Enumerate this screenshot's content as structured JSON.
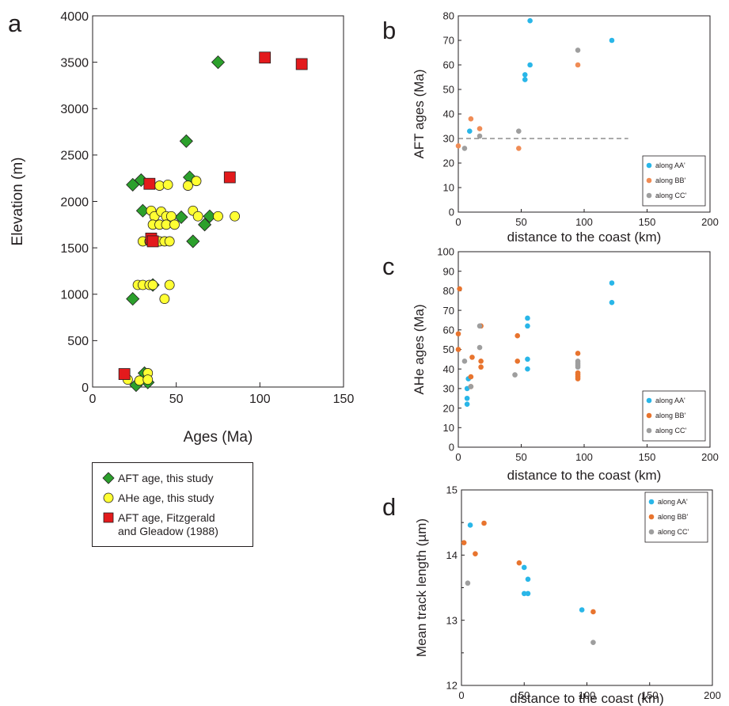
{
  "chart_data": [
    {
      "panel": "a",
      "type": "scatter",
      "xlabel": "Ages (Ma)",
      "ylabel": "Elevation (m)",
      "xlim": [
        0,
        150
      ],
      "ylim": [
        0,
        4000
      ],
      "xticks": [
        "0",
        "50",
        "100",
        "150"
      ],
      "yticks": [
        "0",
        "500",
        "1000",
        "1500",
        "2000",
        "2500",
        "3000",
        "3500",
        "4000"
      ],
      "series": [
        {
          "name": "AFT age, this study",
          "marker": "diamond",
          "color": "#2ca02c",
          "points": [
            [
              75,
              3500
            ],
            [
              56,
              2650
            ],
            [
              24,
              2180
            ],
            [
              29,
              2230
            ],
            [
              58,
              2260
            ],
            [
              30,
              1900
            ],
            [
              53,
              1830
            ],
            [
              70,
              1840
            ],
            [
              67,
              1750
            ],
            [
              60,
              1570
            ],
            [
              36,
              1100
            ],
            [
              24,
              950
            ],
            [
              31,
              150
            ],
            [
              33,
              50
            ],
            [
              26,
              20
            ]
          ]
        },
        {
          "name": "AHe age, this study",
          "marker": "circle",
          "color": "#ffff33",
          "points": [
            [
              40,
              2170
            ],
            [
              45,
              2180
            ],
            [
              57,
              2170
            ],
            [
              62,
              2220
            ],
            [
              35,
              1900
            ],
            [
              37,
              1840
            ],
            [
              41,
              1890
            ],
            [
              44,
              1840
            ],
            [
              47,
              1840
            ],
            [
              60,
              1900
            ],
            [
              63,
              1840
            ],
            [
              75,
              1840
            ],
            [
              85,
              1840
            ],
            [
              36,
              1750
            ],
            [
              40,
              1750
            ],
            [
              44,
              1750
            ],
            [
              49,
              1750
            ],
            [
              30,
              1570
            ],
            [
              34,
              1570
            ],
            [
              36,
              1570
            ],
            [
              40,
              1570
            ],
            [
              43,
              1570
            ],
            [
              46,
              1570
            ],
            [
              27,
              1100
            ],
            [
              30,
              1100
            ],
            [
              34,
              1100
            ],
            [
              36,
              1100
            ],
            [
              46,
              1100
            ],
            [
              43,
              950
            ],
            [
              33,
              150
            ],
            [
              21,
              80
            ],
            [
              28,
              70
            ],
            [
              33,
              80
            ]
          ]
        },
        {
          "name": "AFT age, Fitzgerald and Gleadow (1988)",
          "marker": "square",
          "color": "#e31a1c",
          "points": [
            [
              103,
              3550
            ],
            [
              125,
              3480
            ],
            [
              82,
              2260
            ],
            [
              34,
              2190
            ],
            [
              35,
              1600
            ],
            [
              36,
              1570
            ],
            [
              19,
              140
            ]
          ]
        }
      ]
    },
    {
      "panel": "b",
      "type": "scatter",
      "xlabel": "distance to the coast (km)",
      "ylabel": "AFT ages (Ma)",
      "xlim": [
        0,
        200
      ],
      "ylim": [
        0,
        80
      ],
      "xticks": [
        "0",
        "50",
        "100",
        "150",
        "200"
      ],
      "yticks": [
        "0",
        "10",
        "20",
        "30",
        "40",
        "50",
        "60",
        "70",
        "80"
      ],
      "reference_line": {
        "y": 30,
        "x_range": [
          0,
          135
        ],
        "style": "dashed"
      },
      "legend_position": "bottom-right",
      "series": [
        {
          "name": "along AA'",
          "color": "#29b6e8",
          "points": [
            [
              9,
              33
            ],
            [
              53,
              54
            ],
            [
              53,
              56
            ],
            [
              57,
              60
            ],
            [
              57,
              78
            ],
            [
              122,
              70
            ]
          ]
        },
        {
          "name": "along BB'",
          "color": "#f08c55",
          "points": [
            [
              0,
              27
            ],
            [
              10,
              38
            ],
            [
              17,
              34
            ],
            [
              48,
              26
            ],
            [
              95,
              60
            ]
          ]
        },
        {
          "name": "along CC'",
          "color": "#9e9e9e",
          "points": [
            [
              5,
              26
            ],
            [
              17,
              31
            ],
            [
              48,
              33
            ],
            [
              95,
              66
            ]
          ]
        }
      ]
    },
    {
      "panel": "c",
      "type": "scatter",
      "xlabel": "distance to the coast (km)",
      "ylabel": "AHe ages (Ma)",
      "xlim": [
        0,
        200
      ],
      "ylim": [
        0,
        100
      ],
      "xticks": [
        "0",
        "50",
        "100",
        "150",
        "200"
      ],
      "yticks": [
        "0",
        "10",
        "20",
        "30",
        "40",
        "50",
        "60",
        "70",
        "80",
        "90",
        "100"
      ],
      "legend_position": "bottom-right",
      "series": [
        {
          "name": "along AA'",
          "color": "#29b6e8",
          "points": [
            [
              7,
              22
            ],
            [
              7,
              25
            ],
            [
              7,
              30
            ],
            [
              8,
              35
            ],
            [
              55,
              40
            ],
            [
              55,
              45
            ],
            [
              55,
              62
            ],
            [
              55,
              66
            ],
            [
              122,
              74
            ],
            [
              122,
              84
            ]
          ]
        },
        {
          "name": "along BB'",
          "color": "#e8742e",
          "points": [
            [
              0,
              58
            ],
            [
              0,
              50
            ],
            [
              1,
              81
            ],
            [
              10,
              31
            ],
            [
              10,
              36
            ],
            [
              11,
              46
            ],
            [
              18,
              62
            ],
            [
              18,
              44
            ],
            [
              18,
              41
            ],
            [
              47,
              57
            ],
            [
              47,
              44
            ],
            [
              95,
              48
            ],
            [
              95,
              38
            ],
            [
              95,
              37
            ],
            [
              95,
              36
            ],
            [
              95,
              35
            ]
          ]
        },
        {
          "name": "along CC'",
          "color": "#9e9e9e",
          "points": [
            [
              5,
              44
            ],
            [
              10,
              31
            ],
            [
              17,
              62
            ],
            [
              17,
              51
            ],
            [
              45,
              37
            ],
            [
              95,
              44
            ],
            [
              95,
              43
            ],
            [
              95,
              42
            ],
            [
              95,
              41
            ]
          ]
        }
      ]
    },
    {
      "panel": "d",
      "type": "scatter",
      "xlabel": "distance to the coast (km)",
      "ylabel": "Mean track  length (µm)",
      "xlim": [
        0,
        200
      ],
      "ylim": [
        12,
        15
      ],
      "xticks": [
        "0",
        "50",
        "100",
        "150",
        "200"
      ],
      "yticks": [
        "12",
        "13",
        "14",
        "15"
      ],
      "legend_position": "top-right",
      "series": [
        {
          "name": "along AA'",
          "color": "#29b6e8",
          "points": [
            [
              7,
              14.46
            ],
            [
              50,
              13.81
            ],
            [
              53,
              13.63
            ],
            [
              50,
              13.41
            ],
            [
              53,
              13.41
            ],
            [
              96,
              13.16
            ]
          ]
        },
        {
          "name": "along BB'",
          "color": "#e8742e",
          "points": [
            [
              2,
              14.19
            ],
            [
              11,
              14.02
            ],
            [
              18,
              14.49
            ],
            [
              46,
              13.88
            ],
            [
              105,
              13.13
            ]
          ]
        },
        {
          "name": "along CC'",
          "color": "#9e9e9e",
          "points": [
            [
              5,
              13.57
            ],
            [
              105,
              12.66
            ]
          ]
        }
      ]
    }
  ],
  "panel_labels": {
    "a": "a",
    "b": "b",
    "c": "c",
    "d": "d"
  },
  "legend_a": {
    "items": [
      {
        "label": "AFT age, this study",
        "symbol": "diamond",
        "color": "#2ca02c"
      },
      {
        "label": "AHe age, this study",
        "symbol": "circle",
        "color": "#ffff33"
      },
      {
        "label": "AFT age, Fitzgerald\nand Gleadow (1988)",
        "symbol": "square",
        "color": "#e31a1c"
      }
    ]
  }
}
